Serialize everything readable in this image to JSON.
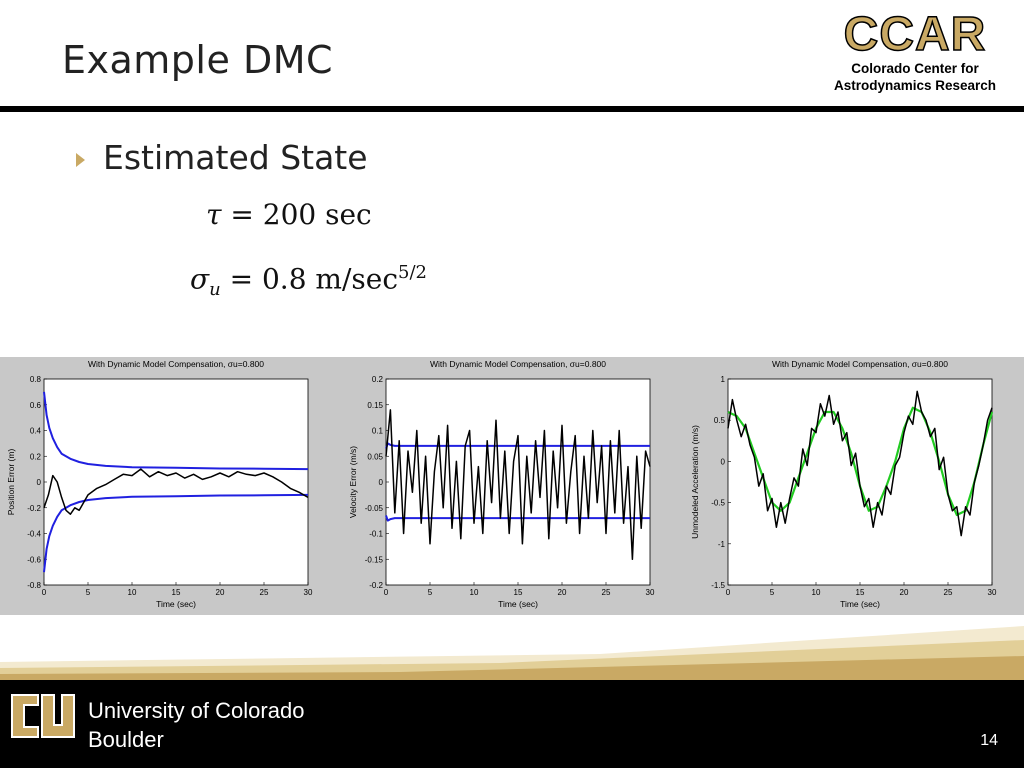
{
  "slide": {
    "title": "Example DMC",
    "bullet": "Estimated State",
    "eq1": {
      "sym": "τ",
      "rest": " = 200 sec"
    },
    "eq2": {
      "sym": "σ",
      "sub": "u",
      "rest": " = 0.8 m/sec",
      "sup": "5/2"
    },
    "page_number": "14"
  },
  "logo": {
    "ccar": "CCAR",
    "line1": "Colorado Center for",
    "line2": "Astrodynamics Research"
  },
  "footer": {
    "line1": "University of Colorado",
    "line2": "Boulder"
  },
  "colors": {
    "gold": "#c9a964",
    "sigma_line": "#2020e0",
    "estimate": "#000000",
    "truth": "#22cc22"
  },
  "chart_data": [
    {
      "type": "line",
      "title": "With Dynamic Model Compensation, σu=0.800",
      "xlabel": "Time (sec)",
      "ylabel": "Position Error (m)",
      "xlim": [
        0,
        30
      ],
      "ylim": [
        -0.8,
        0.8
      ],
      "xticks": [
        "0",
        "5",
        "10",
        "15",
        "20",
        "25",
        "30"
      ],
      "yticks": [
        "0.8",
        "0.6",
        "0.4",
        "0.2",
        "0",
        "-0.2",
        "-0.4",
        "-0.6",
        "-0.8"
      ],
      "series": [
        {
          "role": "sigma",
          "x": [
            0,
            0.3,
            0.6,
            1,
            1.5,
            2,
            3,
            4,
            5,
            7,
            10,
            15,
            20,
            25,
            30
          ],
          "y": [
            0.7,
            0.52,
            0.42,
            0.34,
            0.27,
            0.22,
            0.18,
            0.155,
            0.14,
            0.125,
            0.115,
            0.11,
            0.105,
            0.103,
            0.1
          ]
        },
        {
          "role": "sigma_neg",
          "x": [
            0,
            0.3,
            0.6,
            1,
            1.5,
            2,
            3,
            4,
            5,
            7,
            10,
            15,
            20,
            25,
            30
          ],
          "y": [
            -0.7,
            -0.52,
            -0.42,
            -0.34,
            -0.27,
            -0.22,
            -0.18,
            -0.155,
            -0.14,
            -0.125,
            -0.115,
            -0.11,
            -0.105,
            -0.103,
            -0.1
          ]
        },
        {
          "role": "estimate",
          "x": [
            0,
            0.5,
            1,
            1.5,
            2,
            2.5,
            3,
            3.5,
            4,
            5,
            6,
            7,
            8,
            9,
            10,
            11,
            12,
            13,
            14,
            15,
            16,
            17,
            18,
            19,
            20,
            21,
            22,
            23,
            24,
            25,
            26,
            27,
            28,
            29,
            30
          ],
          "y": [
            -0.2,
            -0.1,
            0.05,
            0.0,
            -0.12,
            -0.22,
            -0.25,
            -0.2,
            -0.22,
            -0.1,
            -0.05,
            -0.02,
            0.02,
            0.06,
            0.05,
            0.1,
            0.04,
            0.08,
            0.05,
            0.07,
            0.03,
            0.06,
            0.02,
            0.04,
            0.07,
            0.04,
            0.08,
            0.06,
            0.05,
            0.07,
            0.04,
            0.0,
            -0.05,
            -0.08,
            -0.12
          ]
        }
      ]
    },
    {
      "type": "line",
      "title": "With Dynamic Model Compensation, σu=0.800",
      "xlabel": "Time (sec)",
      "ylabel": "Velocity Error (m/s)",
      "xlim": [
        0,
        30
      ],
      "ylim": [
        -0.2,
        0.2
      ],
      "xticks": [
        "0",
        "5",
        "10",
        "15",
        "20",
        "25",
        "30"
      ],
      "yticks": [
        "0.2",
        "0.15",
        "0.1",
        "0.05",
        "0",
        "-0.05",
        "-0.1",
        "-0.15",
        "-0.2"
      ],
      "series": [
        {
          "role": "sigma",
          "x": [
            0,
            0.2,
            0.5,
            1,
            30
          ],
          "y": [
            0.065,
            0.075,
            0.072,
            0.07,
            0.07
          ]
        },
        {
          "role": "sigma_neg",
          "x": [
            0,
            0.2,
            0.5,
            1,
            30
          ],
          "y": [
            -0.065,
            -0.075,
            -0.072,
            -0.07,
            -0.07
          ]
        },
        {
          "role": "estimate",
          "x": [
            0,
            0.5,
            1,
            1.5,
            2,
            2.5,
            3,
            3.5,
            4,
            4.5,
            5,
            5.5,
            6,
            6.5,
            7,
            7.5,
            8,
            8.5,
            9,
            9.5,
            10,
            10.5,
            11,
            11.5,
            12,
            12.5,
            13,
            13.5,
            14,
            14.5,
            15,
            15.5,
            16,
            16.5,
            17,
            17.5,
            18,
            18.5,
            19,
            19.5,
            20,
            20.5,
            21,
            21.5,
            22,
            22.5,
            23,
            23.5,
            24,
            24.5,
            25,
            25.5,
            26,
            26.5,
            27,
            27.5,
            28,
            28.5,
            29,
            29.5,
            30
          ],
          "y": [
            0.05,
            0.14,
            -0.06,
            0.08,
            -0.1,
            0.06,
            -0.02,
            0.1,
            -0.08,
            0.05,
            -0.12,
            0.02,
            0.09,
            -0.05,
            0.11,
            -0.09,
            0.04,
            -0.11,
            0.07,
            0.1,
            -0.08,
            0.03,
            -0.1,
            0.08,
            -0.04,
            0.12,
            -0.07,
            0.06,
            -0.1,
            0.04,
            0.09,
            -0.12,
            0.05,
            -0.06,
            0.08,
            -0.03,
            0.1,
            -0.11,
            0.06,
            -0.05,
            0.11,
            -0.08,
            0.02,
            0.09,
            -0.1,
            0.05,
            -0.07,
            0.1,
            -0.04,
            0.07,
            -0.1,
            0.08,
            -0.06,
            0.1,
            -0.08,
            0.03,
            -0.15,
            0.05,
            -0.09,
            0.06,
            0.03
          ]
        }
      ]
    },
    {
      "type": "line",
      "title": "With Dynamic Model Compensation, σu=0.800",
      "xlabel": "Time (sec)",
      "ylabel": "Unmodeled Acceleration (m/s)",
      "xlim": [
        0,
        30
      ],
      "ylim": [
        -1.5,
        1
      ],
      "xticks": [
        "0",
        "5",
        "10",
        "15",
        "20",
        "25",
        "30"
      ],
      "yticks": [
        "1",
        "0.5",
        "0",
        "-0.5",
        "-1",
        "-1.5"
      ],
      "series": [
        {
          "role": "truth",
          "x": [
            0,
            1,
            2,
            3,
            4,
            5,
            6,
            7,
            8,
            9,
            10,
            11,
            12,
            13,
            14,
            15,
            16,
            17,
            18,
            19,
            20,
            21,
            22,
            23,
            24,
            25,
            26,
            27,
            28,
            29,
            30
          ],
          "y": [
            0.6,
            0.55,
            0.4,
            0.1,
            -0.2,
            -0.5,
            -0.6,
            -0.5,
            -0.2,
            0.1,
            0.4,
            0.6,
            0.6,
            0.4,
            0.1,
            -0.3,
            -0.6,
            -0.55,
            -0.3,
            0.0,
            0.4,
            0.65,
            0.6,
            0.35,
            0.0,
            -0.4,
            -0.65,
            -0.6,
            -0.25,
            0.2,
            0.6
          ]
        },
        {
          "role": "estimate",
          "x": [
            0,
            0.5,
            1,
            1.5,
            2,
            2.5,
            3,
            3.5,
            4,
            4.5,
            5,
            5.5,
            6,
            6.5,
            7,
            7.5,
            8,
            8.5,
            9,
            9.5,
            10,
            10.5,
            11,
            11.5,
            12,
            12.5,
            13,
            13.5,
            14,
            14.5,
            15,
            15.5,
            16,
            16.5,
            17,
            17.5,
            18,
            18.5,
            19,
            19.5,
            20,
            20.5,
            21,
            21.5,
            22,
            22.5,
            23,
            23.5,
            24,
            24.5,
            25,
            25.5,
            26,
            26.5,
            27,
            27.5,
            28,
            28.5,
            29,
            29.5,
            30
          ],
          "y": [
            0.4,
            0.75,
            0.5,
            0.3,
            0.45,
            0.2,
            0.05,
            -0.3,
            -0.15,
            -0.6,
            -0.45,
            -0.8,
            -0.5,
            -0.75,
            -0.45,
            -0.2,
            -0.3,
            0.15,
            -0.05,
            0.4,
            0.35,
            0.7,
            0.55,
            0.8,
            0.45,
            0.6,
            0.25,
            0.35,
            -0.05,
            0.1,
            -0.3,
            -0.55,
            -0.45,
            -0.8,
            -0.5,
            -0.65,
            -0.3,
            -0.4,
            -0.05,
            0.05,
            0.35,
            0.55,
            0.45,
            0.85,
            0.6,
            0.5,
            0.3,
            0.4,
            -0.1,
            0.05,
            -0.4,
            -0.6,
            -0.55,
            -0.9,
            -0.55,
            -0.65,
            -0.25,
            -0.05,
            0.2,
            0.5,
            0.65
          ]
        }
      ]
    }
  ]
}
